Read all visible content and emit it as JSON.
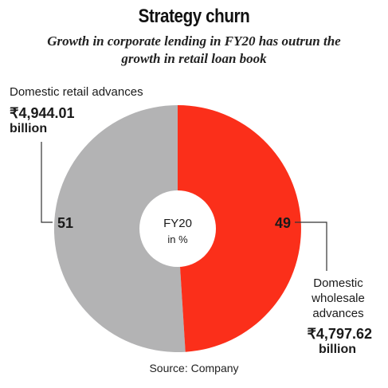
{
  "header": {
    "title": "Strategy churn",
    "subtitle_line1": "Growth in corporate lending in FY20 has outrun the",
    "subtitle_line2": "growth in retail loan book"
  },
  "chart_data": {
    "type": "pie",
    "title": "Strategy churn",
    "center_label_line1": "FY20",
    "center_label_line2": "in %",
    "slices": [
      {
        "label": "Domestic retail advances",
        "value": 51,
        "value_text": "51",
        "amount_line1": "₹4,944.01",
        "amount_line2": "billion",
        "color": "#b3b3b4"
      },
      {
        "label": "Domestic wholesale advances",
        "value": 49,
        "value_text": "49",
        "amount_line1": "₹4,797.62",
        "amount_line2": "billion",
        "color": "#fb2f1a"
      }
    ]
  },
  "labels": {
    "wholesale_line1": "Domestic",
    "wholesale_line2": "wholesale",
    "wholesale_line3": "advances"
  },
  "source": "Source: Company"
}
